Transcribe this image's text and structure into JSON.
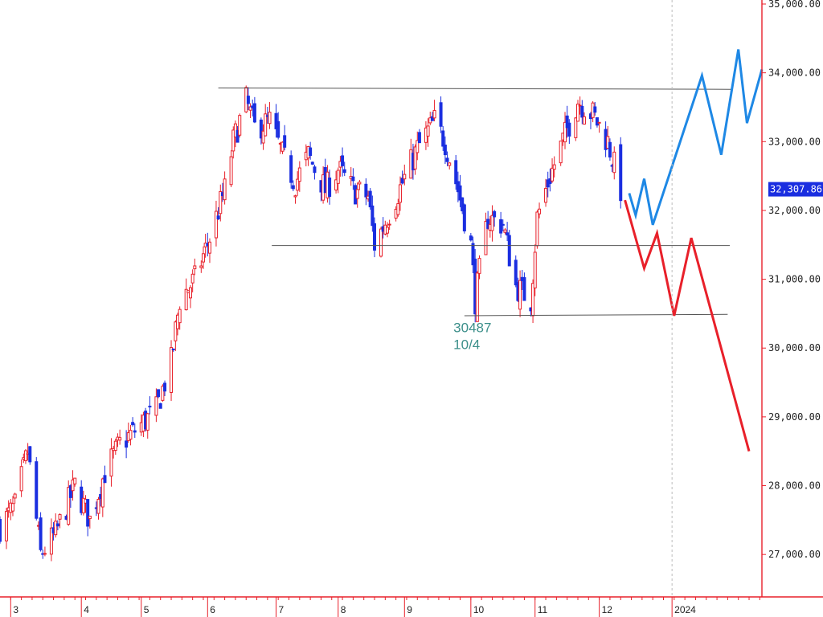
{
  "chart_data": {
    "type": "candlestick",
    "ylim": [
      26500,
      35000
    ],
    "y_ticks": [
      {
        "value": 35000,
        "label": "35,000.00"
      },
      {
        "value": 34000,
        "label": "34,000.00"
      },
      {
        "value": 33000,
        "label": "33,000.00"
      },
      {
        "value": 32000,
        "label": "32,000.00"
      },
      {
        "value": 31000,
        "label": "31,000.00"
      },
      {
        "value": 30000,
        "label": "30,000.00"
      },
      {
        "value": 29000,
        "label": "29,000.00"
      },
      {
        "value": 28000,
        "label": "28,000.00"
      },
      {
        "value": 27000,
        "label": "27,000.00"
      }
    ],
    "x_period": [
      "2023-02-24",
      "2024-02-15"
    ],
    "x_ticks": [
      {
        "date": "2023-03-01",
        "label": "3"
      },
      {
        "date": "2023-04-03",
        "label": "4"
      },
      {
        "date": "2023-05-01",
        "label": "5"
      },
      {
        "date": "2023-06-01",
        "label": "6"
      },
      {
        "date": "2023-07-03",
        "label": "7"
      },
      {
        "date": "2023-08-01",
        "label": "8"
      },
      {
        "date": "2023-09-01",
        "label": "9"
      },
      {
        "date": "2023-10-02",
        "label": "10"
      },
      {
        "date": "2023-11-01",
        "label": "11"
      },
      {
        "date": "2023-12-01",
        "label": "12"
      },
      {
        "date": "2024-01-04",
        "label": "2024"
      }
    ],
    "year_divider_date": "2024-01-04",
    "current_price": {
      "value": 32307.86,
      "label": "32,307.86"
    },
    "annotation": {
      "date": "2023-10-04",
      "price": 30487,
      "lines": [
        "30487",
        "10/4"
      ]
    },
    "up_color": "#e8202a",
    "down_color": "#1a2ee0",
    "price_path": [
      [
        "2023-02-24",
        27400
      ],
      [
        "2023-03-03",
        27700
      ],
      [
        "2023-03-09",
        28500
      ],
      [
        "2023-03-15",
        27000
      ],
      [
        "2023-03-22",
        27300
      ],
      [
        "2023-03-31",
        28000
      ],
      [
        "2023-04-07",
        27500
      ],
      [
        "2023-04-14",
        28200
      ],
      [
        "2023-04-21",
        28600
      ],
      [
        "2023-04-28",
        28800
      ],
      [
        "2023-05-08",
        29100
      ],
      [
        "2023-05-15",
        29800
      ],
      [
        "2023-05-19",
        30700
      ],
      [
        "2023-05-26",
        31000
      ],
      [
        "2023-06-02",
        31600
      ],
      [
        "2023-06-09",
        32300
      ],
      [
        "2023-06-13",
        33000
      ],
      [
        "2023-06-19",
        33600
      ],
      [
        "2023-06-23",
        33200
      ],
      [
        "2023-06-30",
        33300
      ],
      [
        "2023-07-06",
        32800
      ],
      [
        "2023-07-12",
        32400
      ],
      [
        "2023-07-18",
        32800
      ],
      [
        "2023-07-26",
        32300
      ],
      [
        "2023-08-01",
        32600
      ],
      [
        "2023-08-08",
        32300
      ],
      [
        "2023-08-15",
        32200
      ],
      [
        "2023-08-18",
        31500
      ],
      [
        "2023-08-24",
        31900
      ],
      [
        "2023-08-31",
        32400
      ],
      [
        "2023-09-07",
        32900
      ],
      [
        "2023-09-15",
        33300
      ],
      [
        "2023-09-20",
        33000
      ],
      [
        "2023-09-26",
        32300
      ],
      [
        "2023-10-02",
        31500
      ],
      [
        "2023-10-04",
        30700
      ],
      [
        "2023-10-10",
        31900
      ],
      [
        "2023-10-17",
        31800
      ],
      [
        "2023-10-23",
        30900
      ],
      [
        "2023-10-30",
        30700
      ],
      [
        "2023-11-02",
        31900
      ],
      [
        "2023-11-08",
        32500
      ],
      [
        "2023-11-15",
        33100
      ],
      [
        "2023-11-21",
        33600
      ],
      [
        "2023-11-28",
        33400
      ],
      [
        "2023-12-05",
        33000
      ],
      [
        "2023-12-11",
        32300
      ]
    ],
    "horizontal_lines": [
      {
        "from": "2023-06-06",
        "to": "2024-02-01",
        "start": 33780,
        "end": 33760
      },
      {
        "from": "2023-07-01",
        "to": "2024-01-31",
        "start": 31490,
        "end": 31490
      },
      {
        "from": "2023-09-29",
        "to": "2024-01-30",
        "start": 30470,
        "end": 30490
      }
    ],
    "series": [
      {
        "color": "#1e88e5",
        "points": [
          [
            "2023-12-15",
            32250
          ],
          [
            "2023-12-18",
            31930
          ],
          [
            "2023-12-22",
            32460
          ],
          [
            "2023-12-26",
            31790
          ],
          [
            "2024-01-18",
            33960
          ],
          [
            "2024-01-27",
            32810
          ],
          [
            "2024-02-04",
            34340
          ],
          [
            "2024-02-08",
            33270
          ],
          [
            "2024-02-15",
            34050
          ]
        ]
      },
      {
        "color": "#e8202a",
        "points": [
          [
            "2023-12-13",
            32150
          ],
          [
            "2023-12-22",
            31160
          ],
          [
            "2023-12-28",
            31670
          ],
          [
            "2024-01-05",
            30470
          ],
          [
            "2024-01-13",
            31600
          ],
          [
            "2024-02-09",
            28500
          ]
        ]
      }
    ]
  }
}
